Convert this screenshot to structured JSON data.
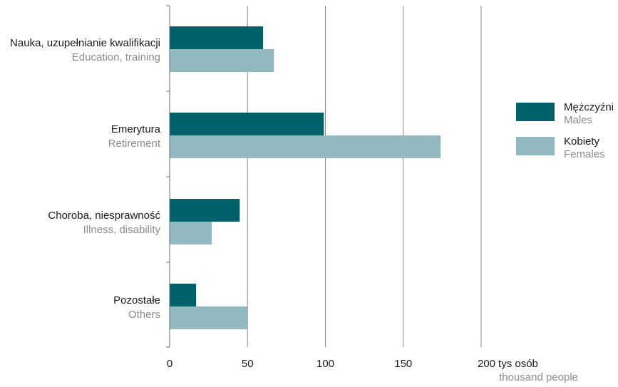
{
  "chart_data": {
    "type": "bar",
    "orientation": "horizontal",
    "categories": [
      {
        "pl": "Nauka, uzupełnianie kwalifikacji",
        "en": "Education, training"
      },
      {
        "pl": "Emerytura",
        "en": "Retirement"
      },
      {
        "pl": "Choroba, niesprawność",
        "en": "Illness, disability"
      },
      {
        "pl": "Pozostałe",
        "en": "Others"
      }
    ],
    "series": [
      {
        "name": "Mężczyźni",
        "name_en": "Males",
        "color": "#00616b",
        "values": [
          60,
          99,
          45,
          17
        ]
      },
      {
        "name": "Kobiety",
        "name_en": "Females",
        "color": "#93b9c0",
        "values": [
          67,
          174,
          27,
          50
        ]
      }
    ],
    "xlim": [
      0,
      200
    ],
    "xticks": [
      "0",
      "50",
      "100",
      "150",
      "200"
    ],
    "xunit": "tys osób",
    "xunit_en": "thousand people",
    "grid": true,
    "legend": "right"
  }
}
